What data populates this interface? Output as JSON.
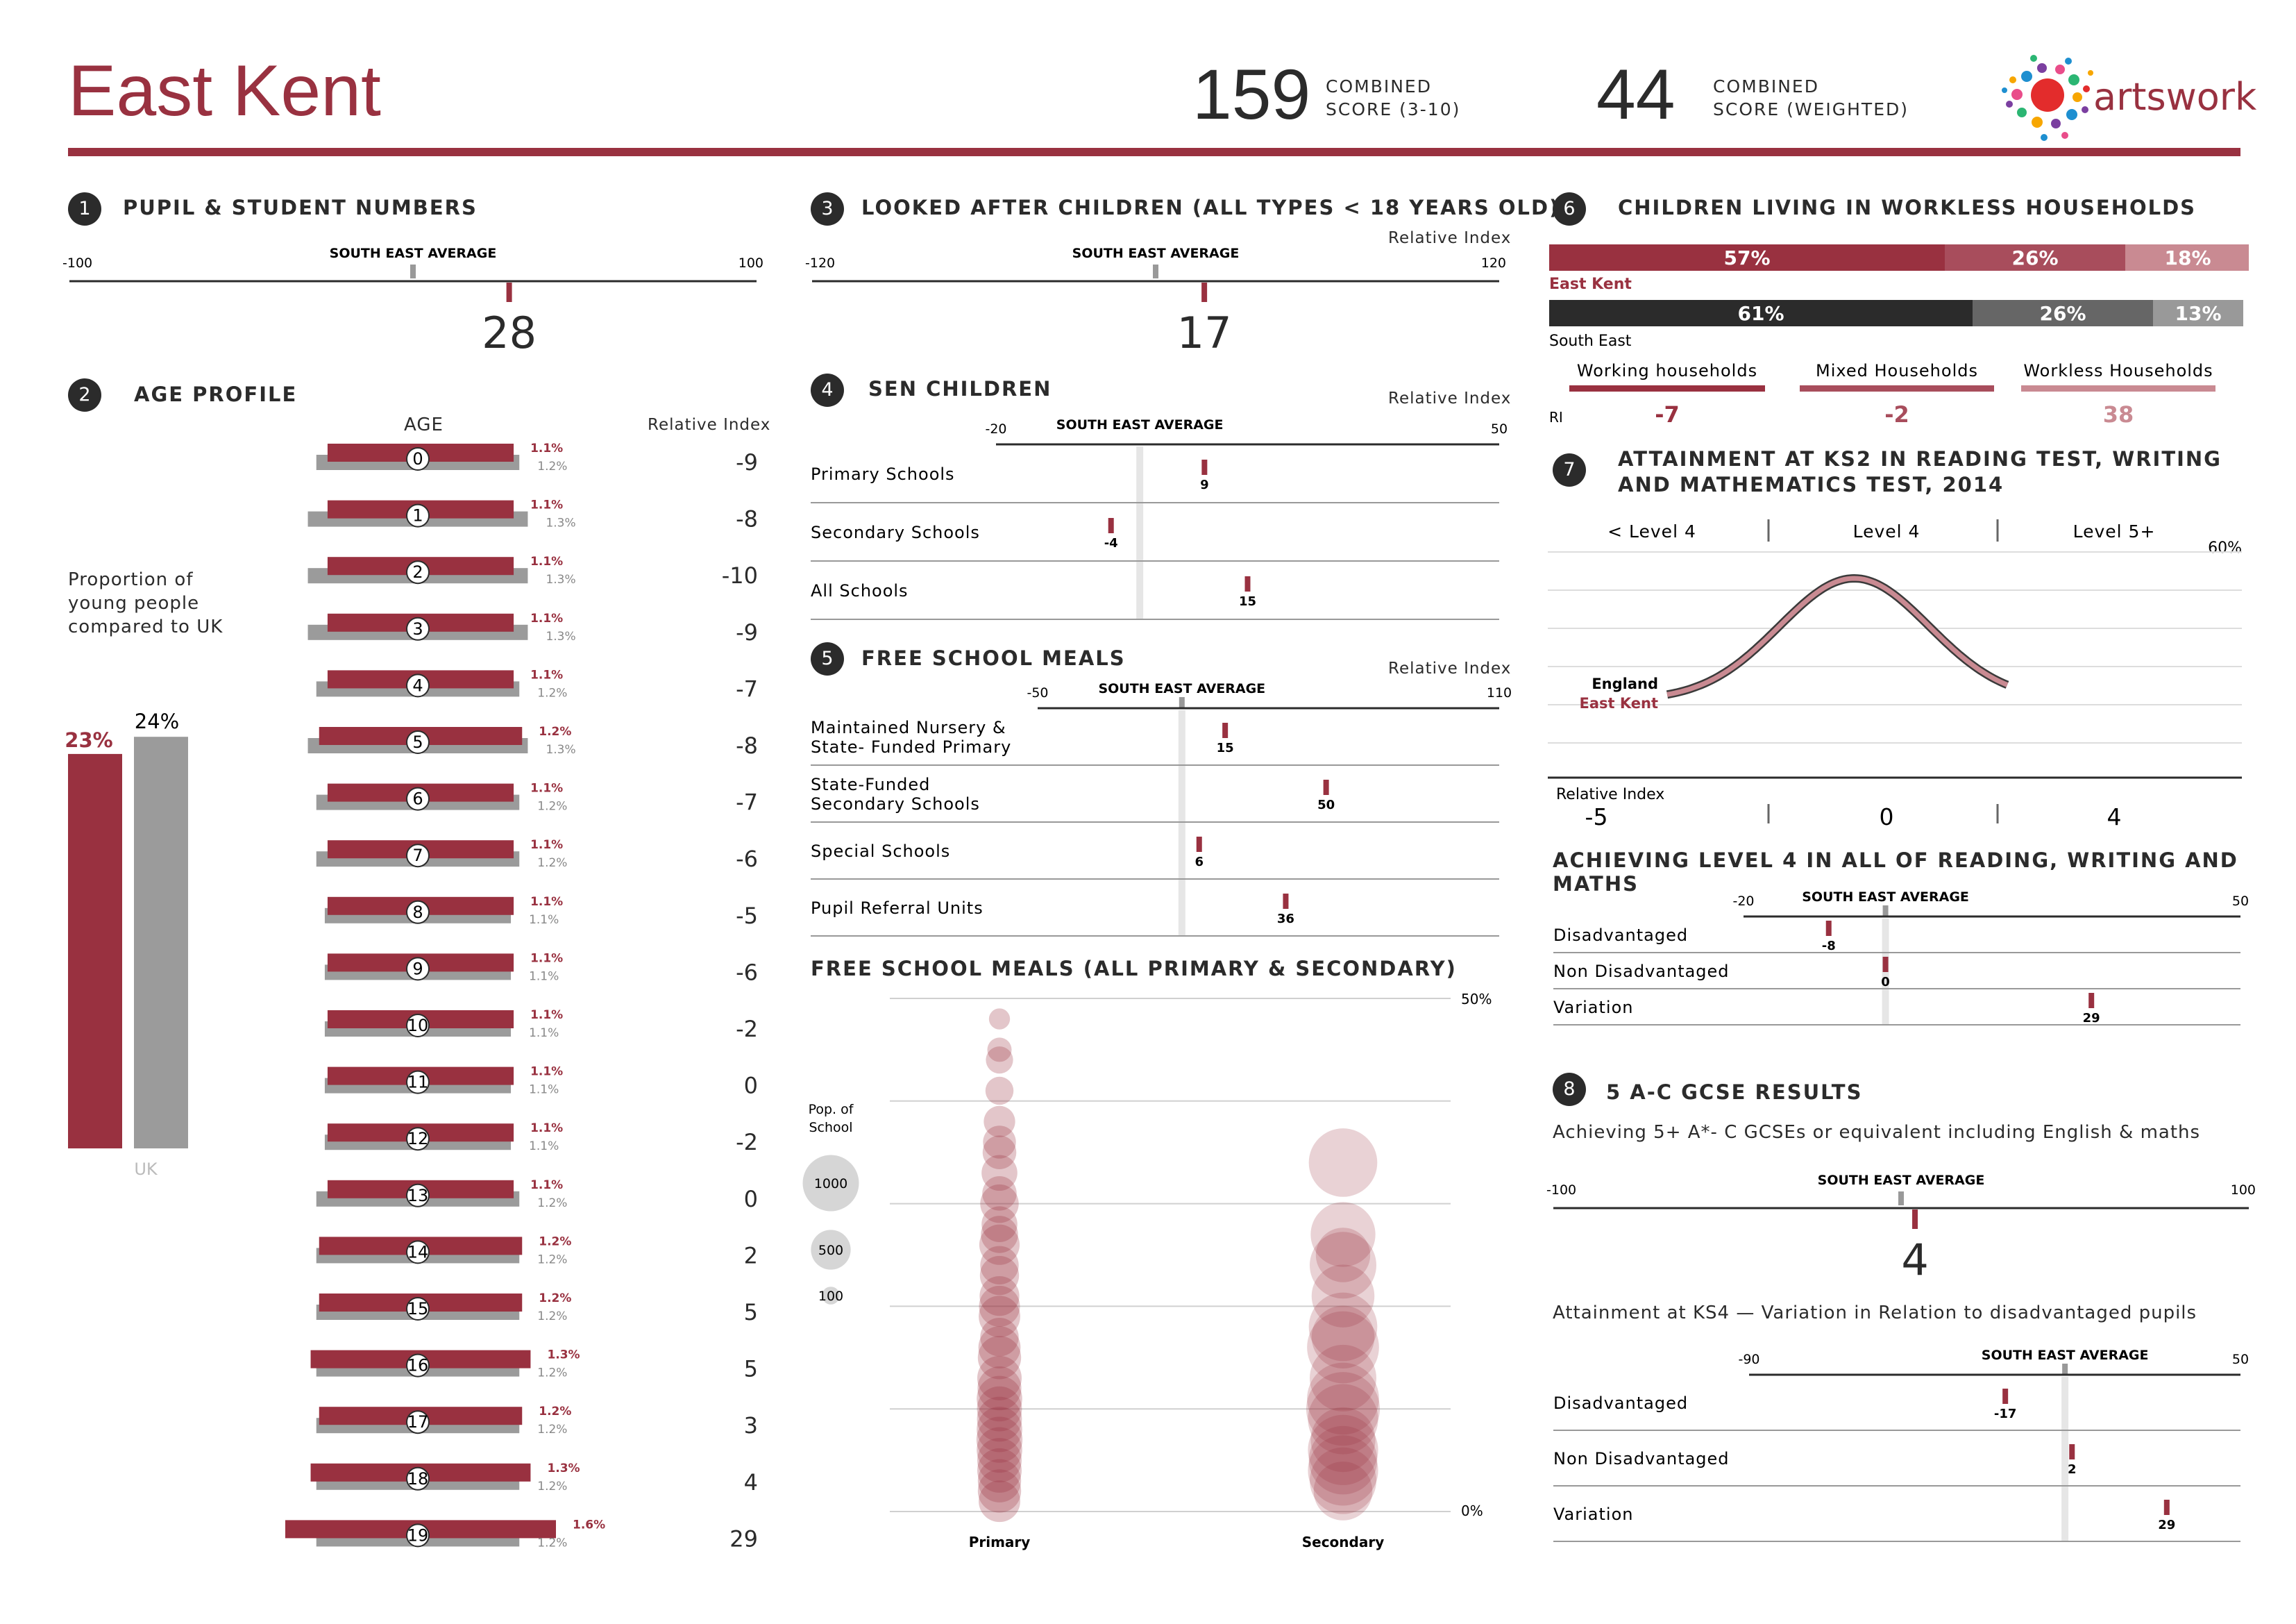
{
  "header": {
    "title": "East Kent",
    "score1": {
      "value": "159",
      "label1": "COMBINED",
      "label2": "SCORE (3-10)"
    },
    "score2": {
      "value": "44",
      "label1": "COMBINED",
      "label2": "SCORE (WEIGHTED)"
    },
    "logo_text": "artswork"
  },
  "colors": {
    "accent": "#993140",
    "grey": "#999999",
    "dark": "#2b2b2b",
    "mid": "#666666",
    "pink": "#c98a92",
    "rose": "#a84d5c"
  },
  "sections": {
    "s1": {
      "num": "1",
      "title": "PUPIL & STUDENT NUMBERS"
    },
    "s2": {
      "num": "2",
      "title": "AGE PROFILE"
    },
    "s3": {
      "num": "3",
      "title": "LOOKED AFTER CHILDREN (ALL TYPES < 18 YEARS OLD)"
    },
    "s4": {
      "num": "4",
      "title": "SEN CHILDREN"
    },
    "s5": {
      "num": "5",
      "title": "FREE SCHOOL MEALS"
    },
    "s6": {
      "num": "6",
      "title": "CHILDREN LIVING IN WORKLESS HOUSEHOLDS"
    },
    "s7": {
      "num": "7",
      "title1": "ATTAINMENT AT KS2 IN READING TEST, WRITING",
      "title2": "AND MATHEMATICS TEST, 2014"
    },
    "s8": {
      "num": "8",
      "title": "5 A-C GCSE RESULTS"
    }
  },
  "labels": {
    "sea": "SOUTH EAST AVERAGE",
    "ri": "Relative Index",
    "age": "AGE",
    "prop1": "Proportion of",
    "prop2": "young people",
    "prop3": "compared to UK",
    "fsm_all": "FREE SCHOOL MEALS (ALL PRIMARY & SECONDARY)",
    "pop1": "Pop. of",
    "pop2": "School",
    "ach_l4": "ACHIEVING LEVEL 4 IN ALL OF READING, WRITING AND MATHS",
    "gcse_sub": "Achieving 5+ A*- C GCSEs or equivalent including English & maths",
    "ks4_sub": "Attainment at KS4 — Variation in Relation to disadvantaged pupils",
    "ri_short": "RI"
  },
  "chart_data": [
    {
      "id": "pupil_numbers",
      "type": "bar",
      "min": -100,
      "max": 100,
      "value": 28,
      "min_label": "-100",
      "max_label": "100",
      "value_label": "28"
    },
    {
      "id": "age_profile",
      "type": "bar",
      "ages": [
        "0",
        "1",
        "2",
        "3",
        "4",
        "5",
        "6",
        "7",
        "8",
        "9",
        "10",
        "11",
        "12",
        "13",
        "14",
        "15",
        "16",
        "17",
        "18",
        "19"
      ],
      "east_kent": [
        1.1,
        1.1,
        1.1,
        1.1,
        1.1,
        1.2,
        1.1,
        1.1,
        1.1,
        1.1,
        1.1,
        1.1,
        1.1,
        1.1,
        1.2,
        1.2,
        1.3,
        1.2,
        1.3,
        1.6
      ],
      "uk": [
        1.2,
        1.3,
        1.3,
        1.3,
        1.2,
        1.3,
        1.2,
        1.2,
        1.1,
        1.1,
        1.1,
        1.1,
        1.1,
        1.2,
        1.2,
        1.2,
        1.2,
        1.2,
        1.2,
        1.2
      ],
      "ek_labels": [
        "1.1%",
        "1.1%",
        "1.1%",
        "1.1%",
        "1.1%",
        "1.2%",
        "1.1%",
        "1.1%",
        "1.1%",
        "1.1%",
        "1.1%",
        "1.1%",
        "1.1%",
        "1.1%",
        "1.2%",
        "1.2%",
        "1.3%",
        "1.2%",
        "1.3%",
        "1.6%"
      ],
      "uk_labels": [
        "1.2%",
        "1.3%",
        "1.3%",
        "1.3%",
        "1.2%",
        "1.3%",
        "1.2%",
        "1.2%",
        "1.1%",
        "1.1%",
        "1.1%",
        "1.1%",
        "1.1%",
        "1.2%",
        "1.2%",
        "1.2%",
        "1.2%",
        "1.2%",
        "1.2%",
        "1.2%"
      ],
      "relative_index": [
        "-9",
        "-8",
        "-10",
        "-9",
        "-7",
        "-8",
        "-7",
        "-6",
        "-5",
        "-6",
        "-2",
        "0",
        "-2",
        "0",
        "2",
        "5",
        "5",
        "3",
        "4",
        "29"
      ]
    },
    {
      "id": "young_people",
      "type": "bar",
      "east_kent_value": 23,
      "uk_value": 24,
      "east_kent_label": "23%",
      "uk_label": "24%",
      "uk_name": "UK"
    },
    {
      "id": "looked_after",
      "type": "bar",
      "min": -120,
      "max": 120,
      "value": 17,
      "min_label": "-120",
      "max_label": "120",
      "value_label": "17"
    },
    {
      "id": "sen",
      "type": "bar",
      "min": -20,
      "max": 50,
      "min_label": "-20",
      "max_label": "50",
      "rows": [
        {
          "label": "Primary Schools",
          "value": 9
        },
        {
          "label": "Secondary Schools",
          "value": -4
        },
        {
          "label": "All Schools",
          "value": 15
        }
      ]
    },
    {
      "id": "fsm",
      "type": "bar",
      "min": -50,
      "max": 110,
      "min_label": "-50",
      "max_label": "110",
      "rows": [
        {
          "label1": "Maintained Nursery &",
          "label2": "State- Funded Primary",
          "value": 15
        },
        {
          "label1": "State-Funded",
          "label2": "Secondary Schools",
          "value": 50
        },
        {
          "label1": "Special Schools",
          "label2": "",
          "value": 6
        },
        {
          "label1": "Pupil Referral Units",
          "label2": "",
          "value": 36
        }
      ]
    },
    {
      "id": "fsm_bubbles",
      "type": "scatter",
      "ylim": [
        0,
        50
      ],
      "ymax_label": "50%",
      "ymin_label": "0%",
      "groups": [
        "Primary",
        "Secondary"
      ],
      "legend": [
        {
          "label": "1000",
          "pop": 1000
        },
        {
          "label": "500",
          "pop": 500
        },
        {
          "label": "100",
          "pop": 100
        }
      ],
      "primary": [
        [
          48,
          90
        ],
        [
          45,
          120
        ],
        [
          41,
          160
        ],
        [
          38,
          200
        ],
        [
          35,
          230
        ],
        [
          33,
          260
        ],
        [
          30,
          300
        ],
        [
          28,
          260
        ],
        [
          26,
          330
        ],
        [
          24,
          300
        ],
        [
          21,
          320
        ],
        [
          19,
          350
        ],
        [
          17,
          300
        ],
        [
          15,
          380
        ],
        [
          13,
          400
        ],
        [
          11,
          420
        ],
        [
          9,
          410
        ],
        [
          7,
          430
        ],
        [
          5,
          400
        ],
        [
          3,
          380
        ],
        [
          1,
          350
        ],
        [
          27,
          280
        ],
        [
          31,
          240
        ],
        [
          23,
          310
        ],
        [
          16,
          360
        ],
        [
          12,
          390
        ],
        [
          8,
          420
        ],
        [
          4,
          400
        ],
        [
          2,
          380
        ],
        [
          44,
          150
        ],
        [
          36,
          220
        ],
        [
          20,
          340
        ],
        [
          10,
          410
        ],
        [
          6,
          420
        ]
      ],
      "secondary": [
        [
          34,
          950
        ],
        [
          27,
          850
        ],
        [
          24,
          900
        ],
        [
          21,
          800
        ],
        [
          18,
          950
        ],
        [
          16,
          1050
        ],
        [
          13,
          900
        ],
        [
          10,
          1100
        ],
        [
          9,
          1000
        ],
        [
          7,
          850
        ],
        [
          5,
          950
        ],
        [
          4,
          1000
        ],
        [
          3,
          900
        ],
        [
          2,
          700
        ],
        [
          25,
          600
        ],
        [
          17,
          800
        ],
        [
          11,
          1050
        ],
        [
          6,
          1000
        ]
      ]
    },
    {
      "id": "workless",
      "type": "bar",
      "east_kent": {
        "name": "East Kent",
        "values": [
          57,
          26,
          18
        ],
        "labels": [
          "57%",
          "26%",
          "18%"
        ]
      },
      "south_east": {
        "name": "South East",
        "values": [
          61,
          26,
          13
        ],
        "labels": [
          "61%",
          "26%",
          "13%"
        ]
      },
      "categories": [
        "Working households",
        "Mixed Households",
        "Workless Households"
      ],
      "ri": [
        "-7",
        "-2",
        "38"
      ]
    },
    {
      "id": "ks2",
      "type": "line",
      "levels": [
        "< Level 4",
        "Level 4",
        "Level 5+"
      ],
      "ymax_label": "60%",
      "series": [
        {
          "name": "England"
        },
        {
          "name": "East Kent"
        }
      ],
      "ri_label": "Relative Index",
      "ri": [
        "-5",
        "0",
        "4"
      ]
    },
    {
      "id": "achieving_l4",
      "type": "bar",
      "min": -20,
      "max": 50,
      "min_label": "-20",
      "max_label": "50",
      "rows": [
        {
          "label": "Disadvantaged",
          "value": -8
        },
        {
          "label": "Non Disadvantaged",
          "value": 0
        },
        {
          "label": "Variation",
          "value": 29
        }
      ]
    },
    {
      "id": "gcse",
      "type": "bar",
      "min": -100,
      "max": 100,
      "value": 4,
      "min_label": "-100",
      "max_label": "100",
      "value_label": "4"
    },
    {
      "id": "ks4",
      "type": "bar",
      "min": -90,
      "max": 50,
      "min_label": "-90",
      "max_label": "50",
      "rows": [
        {
          "label": "Disadvantaged",
          "value": -17
        },
        {
          "label": "Non Disadvantaged",
          "value": 2
        },
        {
          "label": "Variation",
          "value": 29
        }
      ]
    }
  ]
}
